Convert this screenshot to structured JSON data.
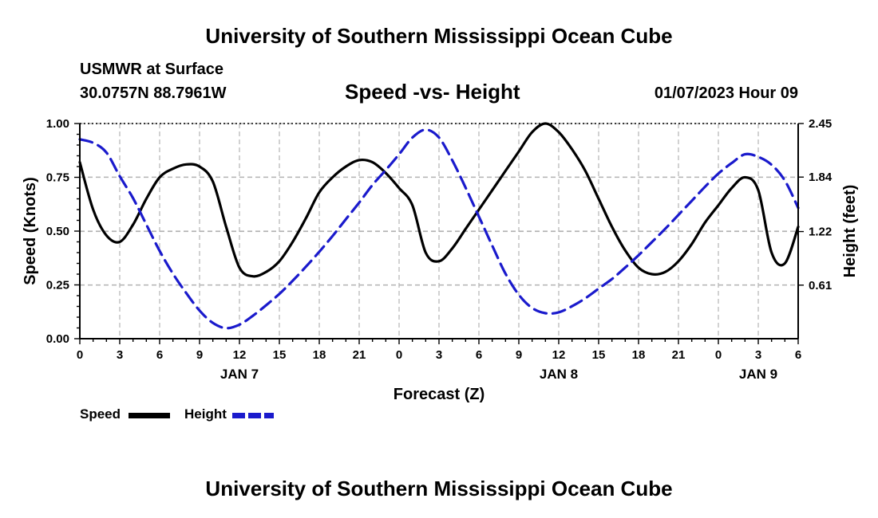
{
  "header": {
    "title": "University of Southern Mississippi Ocean Cube",
    "station_name": "USMWR at Surface",
    "station_coords": "30.0757N  88.7961W",
    "subtitle": "Speed -vs- Height",
    "run_time": "01/07/2023 Hour 09"
  },
  "footer": {
    "title": "University of Southern Mississippi Ocean Cube"
  },
  "legend": {
    "speed_label": "Speed",
    "height_label": "Height"
  },
  "colors": {
    "speed": "#000000",
    "height": "#1a1acc",
    "grid": "#b4b4b4"
  },
  "chart_data": {
    "type": "line",
    "title": "Speed -vs- Height",
    "xlabel": "Forecast (Z)",
    "ylabel": "Speed (Knots)",
    "y2label": "Height (feet)",
    "xlim": [
      0,
      54
    ],
    "ylim": [
      0,
      1.0
    ],
    "y2lim": [
      0,
      2.45
    ],
    "x_ticks": [
      0,
      3,
      6,
      9,
      12,
      15,
      18,
      21,
      24,
      27,
      30,
      33,
      36,
      39,
      42,
      45,
      48,
      51,
      54
    ],
    "x_tick_labels": [
      "0",
      "3",
      "6",
      "9",
      "12",
      "15",
      "18",
      "21",
      "0",
      "3",
      "6",
      "9",
      "12",
      "15",
      "18",
      "21",
      "0",
      "3",
      "6"
    ],
    "date_labels": [
      {
        "x": 12,
        "label": "JAN 7"
      },
      {
        "x": 36,
        "label": "JAN 8"
      },
      {
        "x": 51,
        "label": "JAN 9"
      }
    ],
    "y_ticks": [
      0.0,
      0.25,
      0.5,
      0.75,
      1.0
    ],
    "y_tick_labels": [
      "0.00",
      "0.25",
      "0.50",
      "0.75",
      "1.00"
    ],
    "y2_ticks": [
      0.61,
      1.22,
      1.84,
      2.45
    ],
    "y2_tick_labels": [
      "0.61",
      "1.22",
      "1.84",
      "2.45"
    ],
    "grid": true,
    "legend_position": "bottom-left",
    "series": [
      {
        "name": "Speed",
        "axis": "left",
        "style": "solid",
        "x": [
          0,
          1,
          2,
          3,
          4,
          5,
          6,
          7,
          8,
          9,
          10,
          11,
          12,
          13,
          14,
          15,
          16,
          17,
          18,
          19,
          20,
          21,
          22,
          23,
          24,
          25,
          26,
          27,
          28,
          29,
          30,
          31,
          32,
          33,
          34,
          35,
          36,
          37,
          38,
          39,
          40,
          41,
          42,
          43,
          44,
          45,
          46,
          47,
          48,
          49,
          50,
          51,
          52,
          53,
          54
        ],
        "values": [
          0.82,
          0.6,
          0.48,
          0.45,
          0.53,
          0.65,
          0.75,
          0.79,
          0.81,
          0.8,
          0.73,
          0.52,
          0.33,
          0.29,
          0.31,
          0.36,
          0.45,
          0.56,
          0.68,
          0.75,
          0.8,
          0.83,
          0.82,
          0.77,
          0.7,
          0.62,
          0.4,
          0.36,
          0.42,
          0.51,
          0.6,
          0.69,
          0.78,
          0.87,
          0.96,
          1.0,
          0.96,
          0.88,
          0.78,
          0.65,
          0.52,
          0.41,
          0.33,
          0.3,
          0.31,
          0.36,
          0.44,
          0.54,
          0.62,
          0.7,
          0.75,
          0.69,
          0.4,
          0.35,
          0.52
        ]
      },
      {
        "name": "Height",
        "axis": "right",
        "style": "dashed",
        "x": [
          0,
          1,
          2,
          3,
          4,
          5,
          6,
          7,
          8,
          9,
          10,
          11,
          12,
          13,
          14,
          15,
          16,
          17,
          18,
          19,
          20,
          21,
          22,
          23,
          24,
          25,
          26,
          27,
          28,
          29,
          30,
          31,
          32,
          33,
          34,
          35,
          36,
          37,
          38,
          39,
          40,
          41,
          42,
          43,
          44,
          45,
          46,
          47,
          48,
          49,
          50,
          51,
          52,
          53,
          54
        ],
        "values": [
          2.27,
          2.23,
          2.12,
          1.85,
          1.6,
          1.3,
          1.0,
          0.74,
          0.52,
          0.32,
          0.18,
          0.12,
          0.16,
          0.26,
          0.38,
          0.51,
          0.66,
          0.82,
          0.99,
          1.17,
          1.36,
          1.55,
          1.75,
          1.92,
          2.1,
          2.29,
          2.38,
          2.29,
          2.03,
          1.72,
          1.39,
          1.06,
          0.74,
          0.5,
          0.35,
          0.29,
          0.3,
          0.37,
          0.46,
          0.57,
          0.68,
          0.81,
          0.95,
          1.1,
          1.25,
          1.41,
          1.57,
          1.73,
          1.88,
          2.0,
          2.1,
          2.07,
          1.98,
          1.8,
          1.49
        ]
      }
    ]
  }
}
